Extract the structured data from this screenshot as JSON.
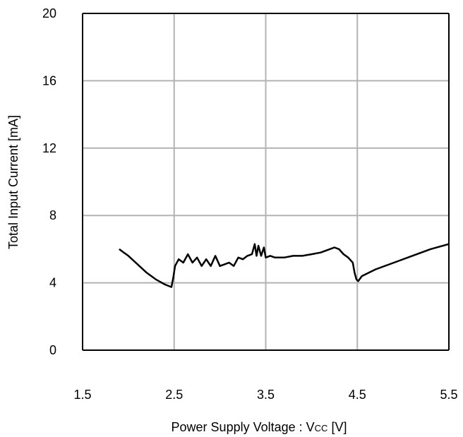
{
  "chart_data": {
    "type": "line",
    "title": "",
    "xlabel_main": "Power Supply Voltage : V",
    "xlabel_sub": "CC",
    "xlabel_unit": " [V]",
    "ylabel": "Total Input Current [mA]",
    "xlim": [
      1.5,
      5.5
    ],
    "ylim": [
      0,
      20
    ],
    "x_ticks": [
      "1.5",
      "2.5",
      "3.5",
      "4.5",
      "5.5"
    ],
    "y_ticks": [
      "0",
      "4",
      "8",
      "12",
      "16",
      "20"
    ],
    "grid": true,
    "series": [
      {
        "color": "#000000",
        "points": [
          [
            1.9,
            6.0
          ],
          [
            1.95,
            5.8
          ],
          [
            2.0,
            5.6
          ],
          [
            2.1,
            5.1
          ],
          [
            2.2,
            4.6
          ],
          [
            2.3,
            4.2
          ],
          [
            2.4,
            3.9
          ],
          [
            2.47,
            3.75
          ],
          [
            2.49,
            4.3
          ],
          [
            2.51,
            5.0
          ],
          [
            2.55,
            5.4
          ],
          [
            2.6,
            5.2
          ],
          [
            2.65,
            5.7
          ],
          [
            2.7,
            5.2
          ],
          [
            2.75,
            5.5
          ],
          [
            2.8,
            5.0
          ],
          [
            2.85,
            5.4
          ],
          [
            2.9,
            5.0
          ],
          [
            2.95,
            5.6
          ],
          [
            3.0,
            5.0
          ],
          [
            3.05,
            5.1
          ],
          [
            3.1,
            5.2
          ],
          [
            3.15,
            5.0
          ],
          [
            3.2,
            5.5
          ],
          [
            3.25,
            5.4
          ],
          [
            3.3,
            5.6
          ],
          [
            3.35,
            5.7
          ],
          [
            3.38,
            6.3
          ],
          [
            3.4,
            5.6
          ],
          [
            3.42,
            6.2
          ],
          [
            3.45,
            5.6
          ],
          [
            3.48,
            6.1
          ],
          [
            3.5,
            5.5
          ],
          [
            3.55,
            5.6
          ],
          [
            3.6,
            5.5
          ],
          [
            3.7,
            5.5
          ],
          [
            3.8,
            5.6
          ],
          [
            3.9,
            5.6
          ],
          [
            4.0,
            5.7
          ],
          [
            4.1,
            5.8
          ],
          [
            4.2,
            6.0
          ],
          [
            4.25,
            6.1
          ],
          [
            4.3,
            6.0
          ],
          [
            4.35,
            5.7
          ],
          [
            4.4,
            5.5
          ],
          [
            4.45,
            5.2
          ],
          [
            4.47,
            4.6
          ],
          [
            4.49,
            4.2
          ],
          [
            4.51,
            4.1
          ],
          [
            4.55,
            4.4
          ],
          [
            4.7,
            4.8
          ],
          [
            4.9,
            5.2
          ],
          [
            5.1,
            5.6
          ],
          [
            5.3,
            6.0
          ],
          [
            5.5,
            6.3
          ]
        ]
      }
    ]
  }
}
